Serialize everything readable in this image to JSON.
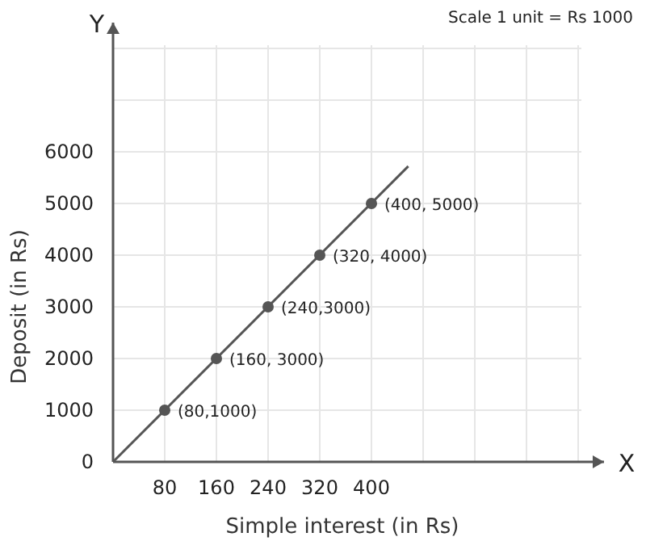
{
  "chart_data": {
    "type": "line",
    "xlabel": "Simple interest (in Rs)",
    "ylabel": "Deposit (in Rs)",
    "xlim": [
      0,
      760
    ],
    "ylim": [
      0,
      8500
    ],
    "xticks": [
      80,
      160,
      240,
      320,
      400,
      {
        "value": 480,
        "label": null
      },
      {
        "value": 560,
        "label": null
      },
      {
        "value": 640,
        "label": null
      },
      {
        "value": 720,
        "label": null
      }
    ],
    "yticks": [
      0,
      1000,
      2000,
      3000,
      4000,
      5000,
      6000,
      {
        "value": 7000,
        "label": null
      },
      {
        "value": 8000,
        "label": null
      }
    ],
    "grid": true,
    "series": [
      {
        "color": "#555555",
        "x": [
          0,
          457
        ],
        "values": [
          0,
          5720
        ],
        "marker": "none"
      },
      {
        "type": "scatter",
        "color": "#555555",
        "x": [
          80,
          160,
          240,
          320,
          400
        ],
        "values": [
          1000,
          2000,
          3000,
          4000,
          5000
        ],
        "marker": "circle"
      }
    ],
    "annotations": [
      "Scale 1 unit = Rs 1000",
      "Y",
      "X",
      {
        "text": "(80,1000)",
        "x": 80,
        "y": 1000
      },
      {
        "text": "(160, 3000)",
        "x": 160,
        "y": 2000
      },
      {
        "text": "(240,3000)",
        "x": 240,
        "y": 3000
      },
      {
        "text": "(320, 4000)",
        "x": 320,
        "y": 4000
      },
      {
        "text": "(400, 5000)",
        "x": 400,
        "y": 5000
      }
    ]
  }
}
